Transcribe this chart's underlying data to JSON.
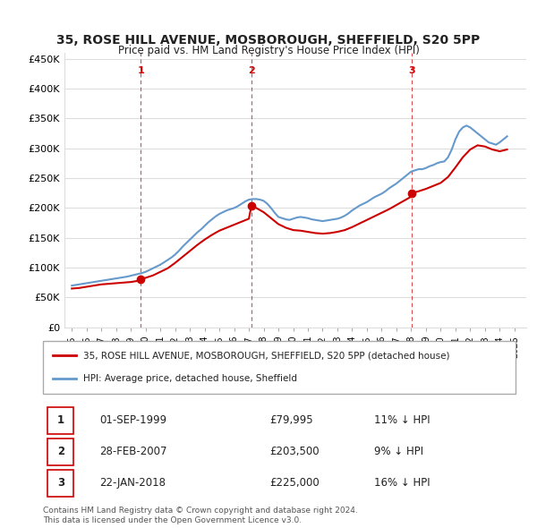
{
  "title": "35, ROSE HILL AVENUE, MOSBOROUGH, SHEFFIELD, S20 5PP",
  "subtitle": "Price paid vs. HM Land Registry's House Price Index (HPI)",
  "property_label": "35, ROSE HILL AVENUE, MOSBOROUGH, SHEFFIELD, S20 5PP (detached house)",
  "hpi_label": "HPI: Average price, detached house, Sheffield",
  "footnote": "Contains HM Land Registry data © Crown copyright and database right 2024.\nThis data is licensed under the Open Government Licence v3.0.",
  "transactions": [
    {
      "num": 1,
      "date": "01-SEP-1999",
      "price": "£79,995",
      "pct": "11% ↓ HPI"
    },
    {
      "num": 2,
      "date": "28-FEB-2007",
      "price": "£203,500",
      "pct": "9% ↓ HPI"
    },
    {
      "num": 3,
      "date": "22-JAN-2018",
      "price": "£225,000",
      "pct": "16% ↓ HPI"
    }
  ],
  "sale_dates": [
    1999.67,
    2007.17,
    2018.06
  ],
  "sale_prices": [
    79995,
    203500,
    225000
  ],
  "property_color": "#cc0000",
  "hpi_color": "#6699cc",
  "vline_color": "#cc0000",
  "background_color": "#ffffff",
  "grid_color": "#dddddd",
  "ylim": [
    0,
    460000
  ],
  "yticks": [
    0,
    50000,
    100000,
    150000,
    200000,
    250000,
    300000,
    350000,
    400000,
    450000
  ],
  "ytick_labels": [
    "£0",
    "£50K",
    "£100K",
    "£150K",
    "£200K",
    "£250K",
    "£300K",
    "£350K",
    "£400K",
    "£450K"
  ],
  "xlim_start": 1994.5,
  "xlim_end": 2025.8,
  "hpi_years": [
    1995,
    1995.25,
    1995.5,
    1995.75,
    1996,
    1996.25,
    1996.5,
    1996.75,
    1997,
    1997.25,
    1997.5,
    1997.75,
    1998,
    1998.25,
    1998.5,
    1998.75,
    1999,
    1999.25,
    1999.5,
    1999.75,
    2000,
    2000.25,
    2000.5,
    2000.75,
    2001,
    2001.25,
    2001.5,
    2001.75,
    2002,
    2002.25,
    2002.5,
    2002.75,
    2003,
    2003.25,
    2003.5,
    2003.75,
    2004,
    2004.25,
    2004.5,
    2004.75,
    2005,
    2005.25,
    2005.5,
    2005.75,
    2006,
    2006.25,
    2006.5,
    2006.75,
    2007,
    2007.25,
    2007.5,
    2007.75,
    2008,
    2008.25,
    2008.5,
    2008.75,
    2009,
    2009.25,
    2009.5,
    2009.75,
    2010,
    2010.25,
    2010.5,
    2010.75,
    2011,
    2011.25,
    2011.5,
    2011.75,
    2012,
    2012.25,
    2012.5,
    2012.75,
    2013,
    2013.25,
    2013.5,
    2013.75,
    2014,
    2014.25,
    2014.5,
    2014.75,
    2015,
    2015.25,
    2015.5,
    2015.75,
    2016,
    2016.25,
    2016.5,
    2016.75,
    2017,
    2017.25,
    2017.5,
    2017.75,
    2018,
    2018.25,
    2018.5,
    2018.75,
    2019,
    2019.25,
    2019.5,
    2019.75,
    2020,
    2020.25,
    2020.5,
    2020.75,
    2021,
    2021.25,
    2021.5,
    2021.75,
    2022,
    2022.25,
    2022.5,
    2022.75,
    2023,
    2023.25,
    2023.5,
    2023.75,
    2024,
    2024.25,
    2024.5
  ],
  "hpi_values": [
    70000,
    71000,
    72000,
    73000,
    74000,
    75000,
    76000,
    77000,
    78000,
    79000,
    80000,
    81000,
    82000,
    83000,
    84000,
    85000,
    86500,
    88000,
    89500,
    91000,
    93000,
    96000,
    99000,
    102000,
    105000,
    109000,
    113000,
    117000,
    122000,
    128000,
    135000,
    141000,
    147000,
    153000,
    159000,
    164000,
    170000,
    176000,
    181000,
    186000,
    190000,
    193000,
    196000,
    198000,
    200000,
    203000,
    207000,
    211000,
    214000,
    215000,
    215000,
    214000,
    212000,
    207000,
    200000,
    192000,
    185000,
    183000,
    181000,
    180000,
    182000,
    184000,
    185000,
    184000,
    183000,
    181000,
    180000,
    179000,
    178000,
    179000,
    180000,
    181000,
    182000,
    184000,
    187000,
    191000,
    196000,
    200000,
    204000,
    207000,
    210000,
    214000,
    218000,
    221000,
    224000,
    228000,
    233000,
    237000,
    241000,
    246000,
    251000,
    256000,
    261000,
    263000,
    265000,
    265000,
    267000,
    270000,
    272000,
    275000,
    277000,
    278000,
    285000,
    298000,
    315000,
    328000,
    335000,
    338000,
    335000,
    330000,
    325000,
    320000,
    315000,
    310000,
    308000,
    306000,
    310000,
    315000,
    320000
  ],
  "property_years": [
    1995,
    1995.5,
    1996,
    1996.5,
    1997,
    1997.5,
    1998,
    1998.5,
    1999,
    1999.5,
    1999.67,
    2000,
    2000.5,
    2001,
    2001.5,
    2002,
    2002.5,
    2003,
    2003.5,
    2004,
    2004.5,
    2005,
    2005.5,
    2006,
    2006.5,
    2007,
    2007.17,
    2007.5,
    2008,
    2008.5,
    2009,
    2009.5,
    2010,
    2010.5,
    2011,
    2011.5,
    2012,
    2012.5,
    2013,
    2013.5,
    2014,
    2014.5,
    2015,
    2015.5,
    2016,
    2016.5,
    2017,
    2017.5,
    2018,
    2018.06,
    2018.5,
    2019,
    2019.5,
    2020,
    2020.5,
    2021,
    2021.5,
    2022,
    2022.5,
    2023,
    2023.5,
    2024,
    2024.5
  ],
  "property_values": [
    65000,
    66000,
    68000,
    70000,
    72000,
    73000,
    74000,
    75000,
    76000,
    78000,
    79995,
    83000,
    87000,
    93000,
    99000,
    108000,
    118000,
    128000,
    138000,
    147000,
    155000,
    162000,
    167000,
    172000,
    177000,
    182000,
    203500,
    200000,
    193000,
    183000,
    173000,
    167000,
    163000,
    162000,
    160000,
    158000,
    157000,
    158000,
    160000,
    163000,
    168000,
    174000,
    180000,
    186000,
    192000,
    198000,
    205000,
    212000,
    219000,
    225000,
    228000,
    232000,
    237000,
    242000,
    252000,
    268000,
    285000,
    298000,
    305000,
    303000,
    298000,
    295000,
    298000
  ]
}
